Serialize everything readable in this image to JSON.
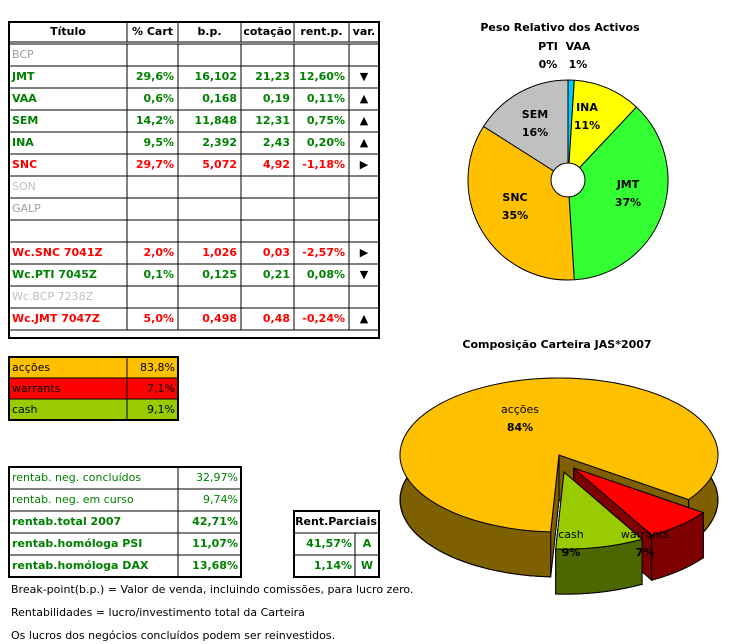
{
  "table": {
    "header": [
      "Título",
      "% Cart",
      "b.p.",
      "cotação",
      "rent.p.",
      "var."
    ],
    "rows": [
      {
        "cells": [
          "BCP"
        ],
        "color": "#a0a0a0"
      },
      {
        "cells": [
          "JMT",
          "29,6%",
          "16,102",
          "21,23",
          "12,60%"
        ],
        "var": "▼",
        "color": "#008000"
      },
      {
        "cells": [
          "VAA",
          "0,6%",
          "0,168",
          "0,19",
          "0,11%"
        ],
        "var": "▲",
        "color": "#008000"
      },
      {
        "cells": [
          "SEM",
          "14,2%",
          "11,848",
          "12,31",
          "0,75%"
        ],
        "var": "▲",
        "color": "#008000"
      },
      {
        "cells": [
          "INA",
          "9,5%",
          "2,392",
          "2,43",
          "0,20%"
        ],
        "var": "▲",
        "color": "#008000"
      },
      {
        "cells": [
          "SNC",
          "29,7%",
          "5,072",
          "4,92",
          "-1,18%"
        ],
        "var": "▶",
        "color": "#ff0000"
      },
      {
        "cells": [
          "SON"
        ],
        "color": "#c0c0c0"
      },
      {
        "cells": [
          "GALP"
        ],
        "color": "#a0a0a0"
      },
      {
        "cells": [
          "Wc.SNC 7041Z",
          "2,0%",
          "1,026",
          "0,03",
          "-2,57%"
        ],
        "var": "▶",
        "color": "#ff0000"
      },
      {
        "cells": [
          "Wc.PTI 7045Z",
          "0,1%",
          "0,125",
          "0,21",
          "0,08%"
        ],
        "var": "▼",
        "color": "#008000"
      },
      {
        "cells": [
          "Wc.BCP 7238Z"
        ],
        "color": "#c0c0c0"
      },
      {
        "cells": [
          "Wc.JMT 7047Z",
          "5,0%",
          "0,498",
          "0,48",
          "-0,24%"
        ],
        "var": "▲",
        "color": "#ff0000"
      }
    ]
  },
  "summary": [
    {
      "label": "acções",
      "value": "83,8%",
      "color": "#ffc000"
    },
    {
      "label": "warrants",
      "value": "7,1%",
      "color": "#ff0000"
    },
    {
      "label": "cash",
      "value": "9,1%",
      "color": "#99cc00"
    }
  ],
  "rentab": [
    {
      "label": "rentab. neg. concluídos",
      "value": "32,97%",
      "bold": false
    },
    {
      "label": "rentab. neg. em curso",
      "value": "9,74%",
      "bold": false
    },
    {
      "label": "rentab.total 2007",
      "value": "42,71%",
      "bold": true
    },
    {
      "label": "rentab.homóloga PSI",
      "value": "11,07%",
      "bold": true
    },
    {
      "label": "rentab.homóloga DAX",
      "value": "13,68%",
      "bold": true
    }
  ],
  "parciais": {
    "title": "Rent.Parciais",
    "rows": [
      [
        "41,57%",
        "A"
      ],
      [
        "1,14%",
        "W"
      ]
    ]
  },
  "notes": [
    "Break-point(b.p.) = Valor de venda, incluindo comissões, para lucro zero.",
    "Rentabilidades = lucro/investimento total da Carteira",
    "Os lucros dos negócios concluídos podem ser reinvestidos."
  ],
  "pie1": {
    "type": "pie",
    "title": "Peso Relativo dos Activos",
    "categories": [
      "PTI",
      "VAA",
      "INA",
      "JMT",
      "SNC",
      "SEM"
    ],
    "values": [
      0,
      1,
      11,
      37,
      35,
      16
    ],
    "value_labels": [
      "0%",
      "1%",
      "11%",
      "37%",
      "35%",
      "16%"
    ],
    "colors": [
      "#000080",
      "#00ccff",
      "#ffff00",
      "#33ff33",
      "#ffc000",
      "#c0c0c0"
    ]
  },
  "pie2": {
    "type": "pie3d",
    "title": "Composição Carteira JAS*2007",
    "categories": [
      "acções",
      "warrants",
      "cash"
    ],
    "values": [
      84,
      7,
      9
    ],
    "value_labels": [
      "84%",
      "7%",
      "9%"
    ],
    "colors": [
      "#ffc000",
      "#ff0000",
      "#99cc00"
    ]
  }
}
